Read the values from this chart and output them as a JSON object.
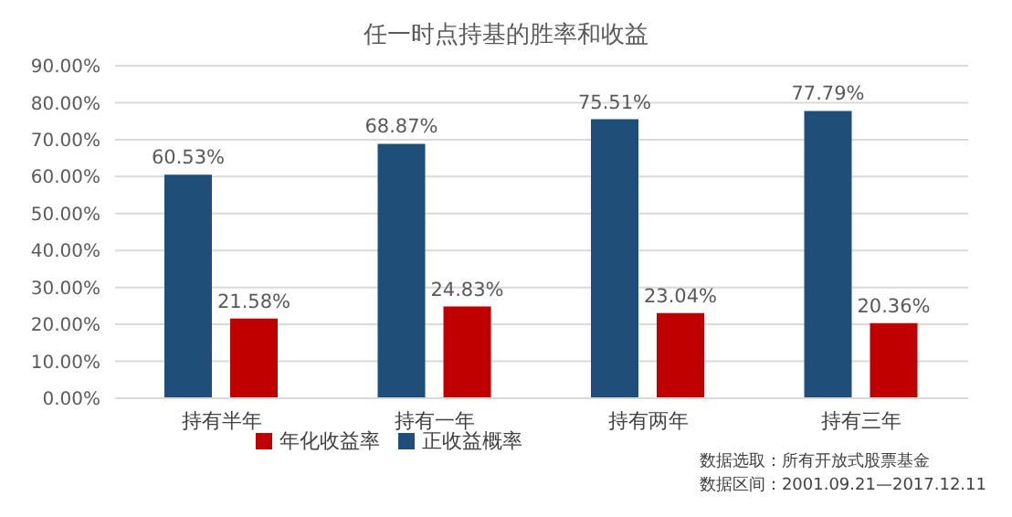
{
  "chart_data": {
    "type": "bar",
    "title": "任一时点持基的胜率和收益",
    "categories": [
      "持有半年",
      "持有一年",
      "持有两年",
      "持有三年"
    ],
    "series": [
      {
        "name": "正收益概率",
        "color": "#1f4e79",
        "values": [
          60.53,
          68.87,
          75.51,
          77.79
        ],
        "value_labels": [
          "60.53%",
          "68.87%",
          "75.51%",
          "77.79%"
        ]
      },
      {
        "name": "年化收益率",
        "color": "#c00000",
        "values": [
          21.58,
          24.83,
          23.04,
          20.36
        ],
        "value_labels": [
          "21.58%",
          "24.83%",
          "23.04%",
          "20.36%"
        ]
      }
    ],
    "ylim": [
      0,
      90
    ],
    "yticks": [
      {
        "value": 0,
        "label": "0.00%"
      },
      {
        "value": 10,
        "label": "10.00%"
      },
      {
        "value": 20,
        "label": "20.00%"
      },
      {
        "value": 30,
        "label": "30.00%"
      },
      {
        "value": 40,
        "label": "40.00%"
      },
      {
        "value": 50,
        "label": "50.00%"
      },
      {
        "value": 60,
        "label": "60.00%"
      },
      {
        "value": 70,
        "label": "70.00%"
      },
      {
        "value": 80,
        "label": "80.00%"
      },
      {
        "value": 90,
        "label": "90.00%"
      }
    ],
    "grid": "y",
    "legend": "bottom",
    "annotations": [
      "数据选取：所有开放式股票基金",
      "数据区间：2001.09.21—2017.12.11"
    ]
  }
}
